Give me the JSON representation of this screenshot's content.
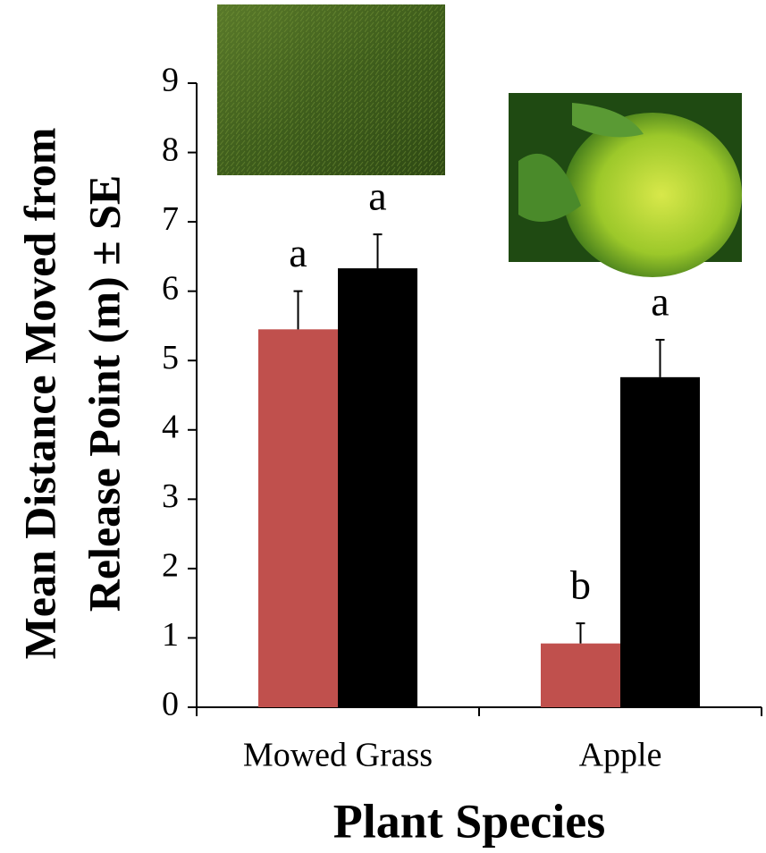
{
  "chart_data": {
    "type": "bar",
    "y_label_lines": [
      "Mean Distance Moved from",
      "Release Point (m) ± SE"
    ],
    "x_label": "Plant Species",
    "categories": [
      "Mowed Grass",
      "Apple"
    ],
    "series": [
      {
        "color": "#c0504d",
        "values": [
          5.45,
          0.92
        ],
        "errors": [
          0.55,
          0.29
        ],
        "letters": [
          "a",
          "b"
        ]
      },
      {
        "color": "#000000",
        "values": [
          6.33,
          4.76
        ],
        "errors": [
          0.49,
          0.54
        ],
        "letters": [
          "a",
          "a"
        ]
      }
    ],
    "ylim": [
      0,
      9
    ],
    "yticks": [
      0,
      1,
      2,
      3,
      4,
      5,
      6,
      7,
      8,
      9
    ]
  }
}
